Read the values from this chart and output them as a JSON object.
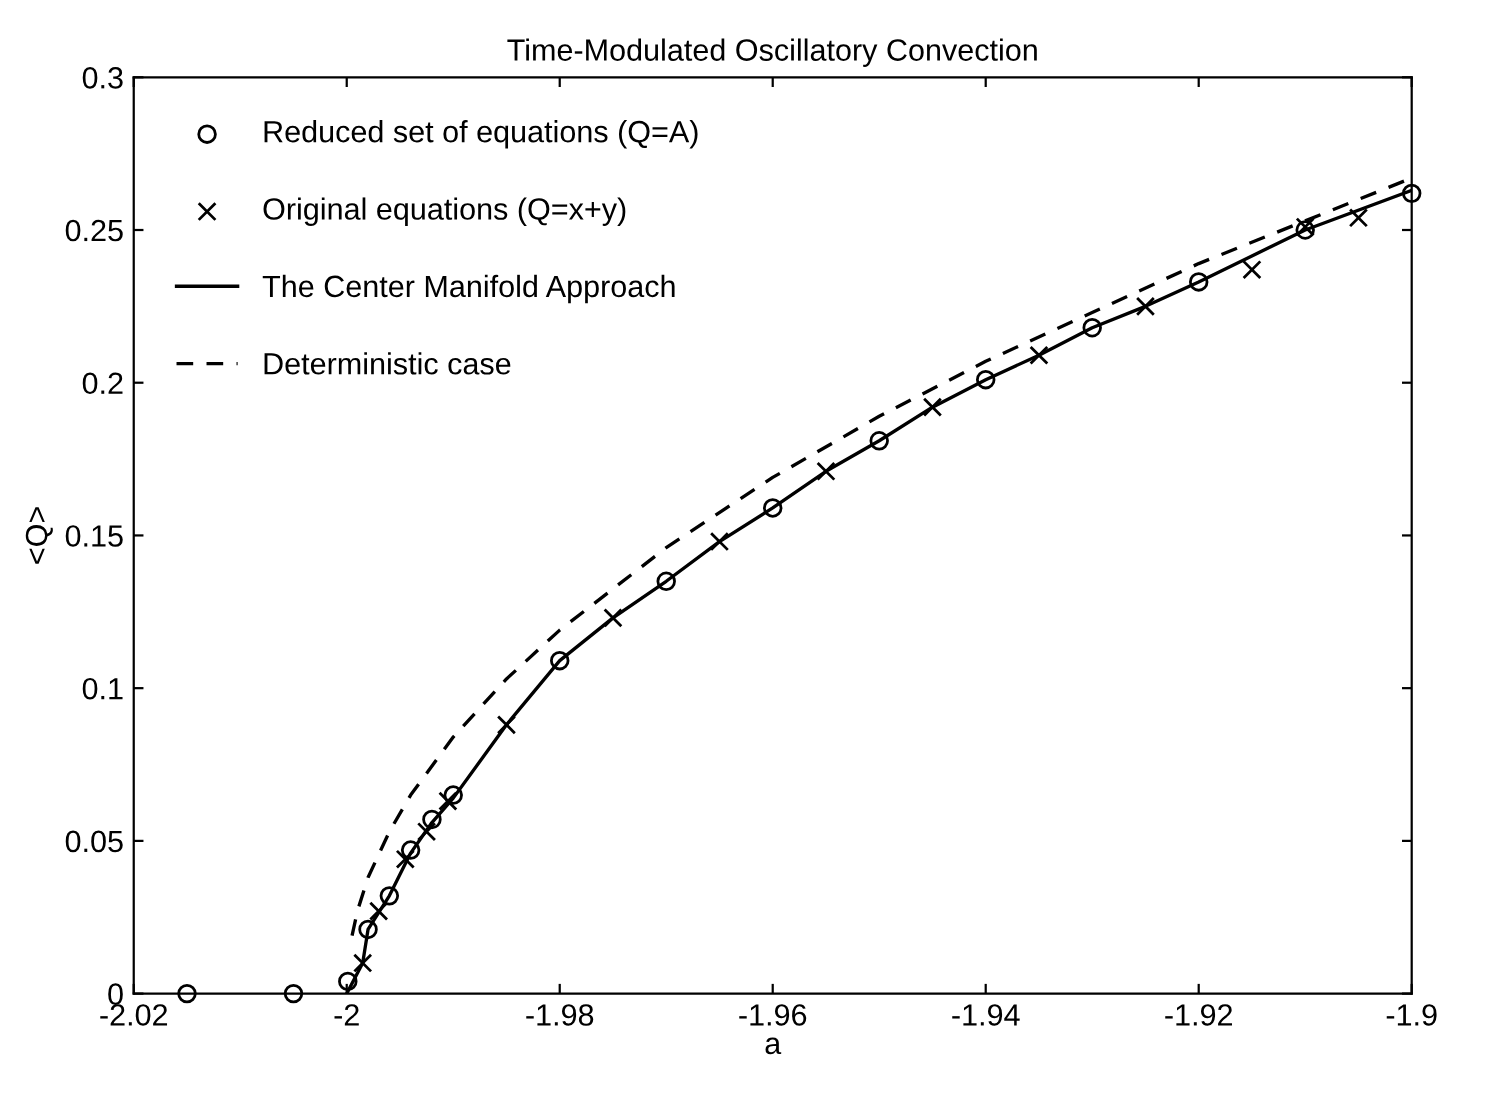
{
  "chart_data": {
    "type": "line",
    "title": "Time-Modulated Oscillatory Convection",
    "xlabel": "a",
    "ylabel": "<Q>",
    "xlim": [
      -2.02,
      -1.9
    ],
    "ylim": [
      0,
      0.3
    ],
    "xticks": [
      -2.02,
      -2,
      -1.98,
      -1.96,
      -1.94,
      -1.92,
      {
        "value": -1.9,
        "label": "-1.9"
      }
    ],
    "yticks": [
      0,
      0.05,
      0.1,
      0.15,
      0.2,
      0.25,
      0.3
    ],
    "grid": false,
    "legend": "top left",
    "series": [
      {
        "name": "Reduced set of equations (Q=A)",
        "type": "scatter",
        "marker": "circle",
        "color": "#000000",
        "x": [
          -2.015,
          -2.005,
          -1.9999,
          -1.998,
          -1.996,
          -1.994,
          -1.992,
          -1.99,
          -1.98,
          -1.97,
          -1.96,
          -1.95,
          -1.94,
          -1.93,
          -1.92,
          -1.91,
          -1.9
        ],
        "values": [
          0,
          0,
          0.004,
          0.021,
          0.032,
          0.047,
          0.057,
          0.065,
          0.109,
          0.135,
          0.159,
          0.181,
          0.201,
          0.218,
          0.233,
          0.25,
          0.262
        ]
      },
      {
        "name": "Original equations (Q=x+y)",
        "type": "scatter",
        "marker": "cross",
        "color": "#000000",
        "x": [
          -1.9985,
          -1.997,
          -1.9945,
          -1.9925,
          -1.9905,
          -1.985,
          -1.975,
          -1.965,
          -1.955,
          -1.945,
          -1.935,
          -1.925,
          -1.915,
          -1.91,
          -1.905
        ],
        "values": [
          0.01,
          0.027,
          0.044,
          0.053,
          0.063,
          0.088,
          0.123,
          0.148,
          0.171,
          0.192,
          0.209,
          0.225,
          0.237,
          0.251,
          0.254
        ]
      },
      {
        "name": "The Center Manifold Approach",
        "line_style": "solid",
        "color": "#000000",
        "x": [
          -2.0,
          -1.9985,
          -1.998,
          -1.996,
          -1.994,
          -1.992,
          -1.99,
          -1.985,
          -1.98,
          -1.975,
          -1.97,
          -1.965,
          -1.96,
          -1.955,
          -1.95,
          -1.945,
          -1.94,
          -1.935,
          -1.93,
          -1.925,
          -1.92,
          -1.91,
          -1.9
        ],
        "values": [
          0,
          0.01,
          0.021,
          0.032,
          0.046,
          0.056,
          0.064,
          0.088,
          0.109,
          0.123,
          0.135,
          0.148,
          0.159,
          0.171,
          0.181,
          0.192,
          0.201,
          0.209,
          0.218,
          0.225,
          0.233,
          0.25,
          0.263
        ]
      },
      {
        "name": "Deterministic case",
        "line_style": "dashed",
        "color": "#000000",
        "x": [
          -1.9995,
          -1.999,
          -1.998,
          -1.996,
          -1.994,
          -1.99,
          -1.985,
          -1.98,
          -1.97,
          -1.96,
          -1.95,
          -1.94,
          -1.93,
          -1.92,
          -1.91,
          -1.9
        ],
        "values": [
          0.019,
          0.027,
          0.038,
          0.053,
          0.065,
          0.084,
          0.103,
          0.119,
          0.146,
          0.169,
          0.189,
          0.207,
          0.223,
          0.239,
          0.253,
          0.267
        ]
      }
    ]
  }
}
